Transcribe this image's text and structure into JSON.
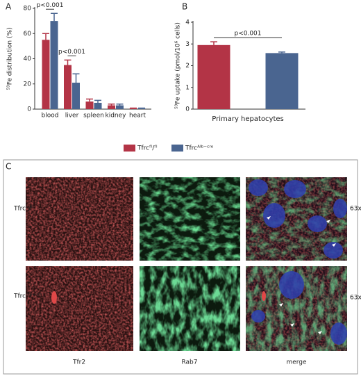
{
  "chart_data": [
    {
      "type": "bar",
      "panel_label": "A",
      "ylabel": "⁵⁹Fe distribution (%)",
      "categories": [
        "blood",
        "liver",
        "spleen",
        "kidney",
        "heart"
      ],
      "series": [
        {
          "name": "Tfrcᶠˡ/ᶠˡ",
          "color": "#b33446",
          "values": [
            55,
            35,
            6,
            3,
            0.5
          ],
          "errors": [
            5,
            4,
            2,
            1,
            0.3
          ]
        },
        {
          "name": "Tfrcᴬˡᵇ⁻ᶜʳᵉ",
          "color": "#4a6590",
          "values": [
            70,
            21,
            5,
            3,
            0.5
          ],
          "errors": [
            6,
            7,
            2,
            1,
            0.3
          ]
        }
      ],
      "ylim": [
        0,
        80
      ],
      "yticks": [
        0,
        20,
        40,
        60,
        80
      ],
      "annotations": [
        "p<0.001",
        "p<0.001"
      ],
      "legend": "bottom"
    },
    {
      "type": "bar",
      "panel_label": "B",
      "ylabel": "⁵⁹Fe uptake (pmol/10⁶ cells)",
      "xlabel": "Primary hepatocytes",
      "series": [
        {
          "name": "Tfrcᶠˡ/ᶠˡ",
          "color": "#b33446",
          "values": [
            2.95
          ],
          "errors": [
            0.15
          ]
        },
        {
          "name": "Tfrcᴬˡᵇ⁻ᶜʳᵉ",
          "color": "#4a6590",
          "values": [
            2.58
          ],
          "errors": [
            0.05
          ]
        }
      ],
      "ylim": [
        0,
        4
      ],
      "yticks": [
        0,
        1,
        2,
        3,
        4
      ],
      "annotations": [
        "p<0.001"
      ]
    }
  ],
  "panel_c": {
    "panel_label": "C",
    "rows": [
      "Tfrcᶠˡ/ᶠˡ",
      "Tfrcᴬˡᵇ⁻ᶜʳᵉ"
    ],
    "columns": [
      "Tfr2",
      "Rab7",
      "merge"
    ],
    "magnifications": [
      "63x",
      "63x"
    ]
  }
}
